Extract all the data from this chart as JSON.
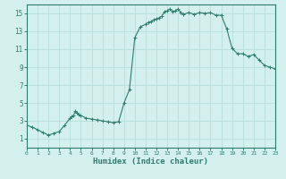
{
  "x": [
    0,
    0.5,
    1,
    1.5,
    2,
    2.5,
    3,
    3.5,
    4,
    4.17,
    4.33,
    4.5,
    4.67,
    4.83,
    5,
    5.5,
    6,
    6.5,
    7,
    7.5,
    8,
    8.5,
    9,
    9.5,
    10,
    10.5,
    11,
    11.25,
    11.5,
    11.75,
    12,
    12.25,
    12.5,
    12.75,
    13,
    13.25,
    13.5,
    13.75,
    14,
    14.25,
    14.5,
    15,
    15.5,
    16,
    16.5,
    17,
    17.5,
    18,
    18.5,
    19,
    19.5,
    20,
    20.5,
    21,
    21.5,
    22,
    22.5,
    23
  ],
  "y": [
    2.5,
    2.3,
    2.0,
    1.7,
    1.4,
    1.6,
    1.8,
    2.5,
    3.3,
    3.5,
    3.6,
    4.1,
    3.9,
    3.7,
    3.6,
    3.3,
    3.2,
    3.1,
    3.0,
    2.9,
    2.8,
    2.9,
    5.0,
    6.5,
    12.3,
    13.5,
    13.8,
    14.0,
    14.1,
    14.3,
    14.4,
    14.5,
    14.7,
    15.2,
    15.3,
    15.5,
    15.2,
    15.3,
    15.5,
    15.1,
    14.9,
    15.1,
    14.9,
    15.1,
    15.0,
    15.1,
    14.8,
    14.8,
    13.3,
    11.1,
    10.5,
    10.5,
    10.2,
    10.4,
    9.8,
    9.2,
    9.0,
    8.8
  ],
  "line_color": "#2d7d6e",
  "marker": "+",
  "bg_color": "#d4f0ec",
  "grid_color": "#b8ddd8",
  "xlim": [
    0,
    23
  ],
  "ylim": [
    0,
    16
  ],
  "xticks": [
    0,
    1,
    2,
    3,
    4,
    5,
    6,
    7,
    8,
    9,
    10,
    11,
    12,
    13,
    14,
    15,
    16,
    17,
    18,
    19,
    20,
    21,
    22,
    23
  ],
  "yticks": [
    1,
    3,
    5,
    7,
    9,
    11,
    13,
    15
  ],
  "xlabel": "Humidex (Indice chaleur)",
  "tick_color": "#2d7d6e",
  "axis_color": "#2d7d6e",
  "title_color": "#2d7d6e"
}
